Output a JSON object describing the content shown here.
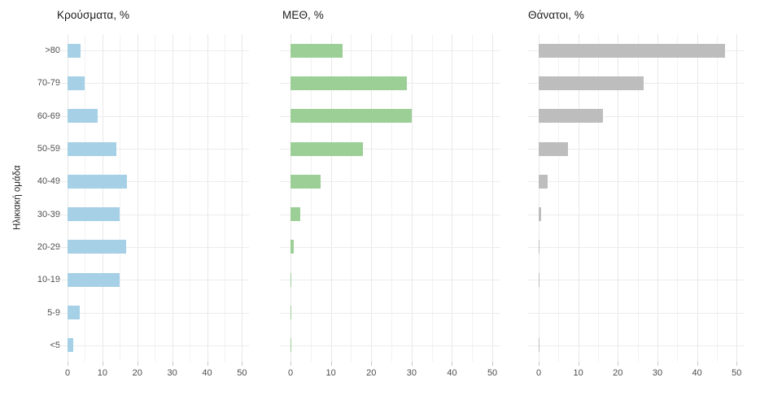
{
  "figure": {
    "kind": "three-panel horizontal bar chart of COVID age distribution",
    "background_color": "#ffffff",
    "shared_ylabel": "Ηλικιακή ομάδα",
    "grid": "on",
    "legend": "none"
  },
  "chart_data": [
    {
      "type": "bar",
      "orientation": "horizontal",
      "title": "Κρούσματα, %",
      "ylabel": "Ηλικιακή ομάδα",
      "xlabel": "",
      "categories": [
        ">80",
        "70-79",
        "60-69",
        "50-59",
        "40-49",
        "30-39",
        "20-29",
        "10-19",
        "5-9",
        "<5"
      ],
      "values": [
        3.7,
        5.0,
        8.6,
        13.9,
        17.1,
        15.0,
        16.9,
        15.0,
        3.6,
        1.6
      ],
      "color": "#a5d0e6",
      "xlim": [
        0,
        50
      ],
      "xticks": [
        0,
        10,
        20,
        30,
        40,
        50
      ],
      "grid_minor_step": 5
    },
    {
      "type": "bar",
      "orientation": "horizontal",
      "title": "ΜΕΘ, %",
      "ylabel": "Ηλικιακή ομάδα",
      "xlabel": "",
      "categories": [
        ">80",
        "70-79",
        "60-69",
        "50-59",
        "40-49",
        "30-39",
        "20-29",
        "10-19",
        "5-9",
        "<5"
      ],
      "values": [
        12.9,
        28.8,
        30.0,
        18.0,
        7.5,
        2.4,
        0.9,
        0.3,
        0.2,
        0.2
      ],
      "color": "#9ccf96",
      "xlim": [
        0,
        50
      ],
      "xticks": [
        0,
        10,
        20,
        30,
        40,
        50
      ],
      "grid_minor_step": 5
    },
    {
      "type": "bar",
      "orientation": "horizontal",
      "title": "Θάνατοι, %",
      "ylabel": "Ηλικιακή ομάδα",
      "xlabel": "",
      "categories": [
        ">80",
        "70-79",
        "60-69",
        "50-59",
        "40-49",
        "30-39",
        "20-29",
        "10-19",
        "5-9",
        "<5"
      ],
      "values": [
        47.1,
        26.5,
        16.3,
        7.3,
        2.2,
        0.7,
        0.1,
        0.1,
        0.0,
        0.1
      ],
      "color": "#bdbdbd",
      "xlim": [
        0,
        50
      ],
      "xticks": [
        0,
        10,
        20,
        30,
        40,
        50
      ],
      "grid_minor_step": 5
    }
  ]
}
